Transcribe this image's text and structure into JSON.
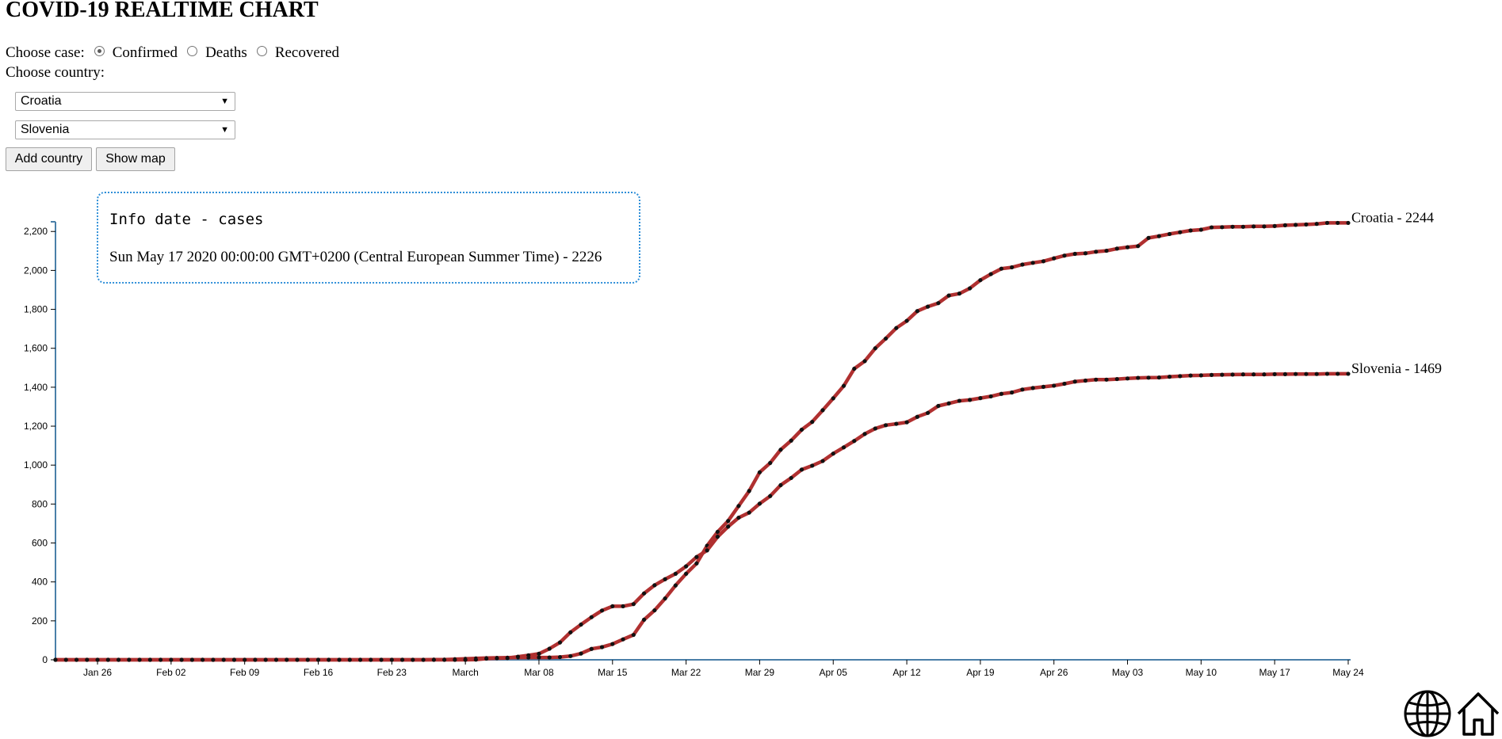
{
  "header": {
    "title": "COVID-19 REALTIME CHART"
  },
  "controls": {
    "case_label": "Choose case:",
    "cases": [
      {
        "label": "Confirmed",
        "checked": true
      },
      {
        "label": "Deaths",
        "checked": false
      },
      {
        "label": "Recovered",
        "checked": false
      }
    ],
    "country_label": "Choose country:",
    "selects": [
      "Croatia",
      "Slovenia"
    ],
    "add_country_label": "Add country",
    "show_map_label": "Show map"
  },
  "tooltip": {
    "title": "Info date - cases",
    "text": "Sun May 17 2020 00:00:00 GMT+0200 (Central European Summer Time) - 2226"
  },
  "icons": {
    "globe": "globe-icon",
    "home": "home-icon"
  },
  "chart_data": {
    "type": "line",
    "x_start": "2020-01-22",
    "x_tick_labels": [
      "Jan 26",
      "Feb 02",
      "Feb 09",
      "Feb 16",
      "Feb 23",
      "March",
      "Mar 08",
      "Mar 15",
      "Mar 22",
      "Mar 29",
      "Apr 05",
      "Apr 12",
      "Apr 19",
      "Apr 26",
      "May 03",
      "May 10",
      "May 17",
      "May 24"
    ],
    "x_tick_days": [
      4,
      11,
      18,
      25,
      32,
      39,
      46,
      53,
      60,
      67,
      74,
      81,
      88,
      95,
      102,
      109,
      116,
      123
    ],
    "y_ticks": [
      0,
      200,
      400,
      600,
      800,
      1000,
      1200,
      1400,
      1600,
      1800,
      2000,
      2200
    ],
    "y_tick_labels": [
      "0",
      "200",
      "400",
      "600",
      "800",
      "1,000",
      "1,200",
      "1,400",
      "1,600",
      "1,800",
      "2,000",
      "2,200"
    ],
    "ylim": [
      0,
      2250
    ],
    "line_color": "#b03030",
    "marker_color": "#111111",
    "series": [
      {
        "name": "Croatia",
        "end_label": "Croatia - 2244",
        "values": [
          0,
          0,
          0,
          0,
          0,
          0,
          0,
          0,
          0,
          0,
          0,
          0,
          0,
          0,
          0,
          0,
          0,
          0,
          0,
          0,
          0,
          0,
          0,
          0,
          0,
          0,
          0,
          0,
          0,
          0,
          0,
          0,
          0,
          0,
          0,
          0,
          1,
          1,
          3,
          5,
          7,
          9,
          10,
          11,
          12,
          12,
          12,
          12,
          14,
          19,
          32,
          56,
          65,
          81,
          105,
          128,
          206,
          254,
          315,
          382,
          442,
          495,
          586,
          657,
          713,
          790,
          867,
          963,
          1011,
          1079,
          1126,
          1182,
          1222,
          1282,
          1343,
          1407,
          1495,
          1534,
          1600,
          1650,
          1704,
          1741,
          1791,
          1814,
          1832,
          1871,
          1881,
          1908,
          1950,
          1981,
          2009,
          2016,
          2030,
          2039,
          2047,
          2062,
          2076,
          2085,
          2088,
          2096,
          2101,
          2112,
          2119,
          2125,
          2167,
          2176,
          2187,
          2196,
          2205,
          2209,
          2221,
          2222,
          2224,
          2224,
          2226,
          2226,
          2228,
          2232,
          2234,
          2236,
          2239,
          2244,
          2244,
          2244
        ]
      },
      {
        "name": "Slovenia",
        "end_label": "Slovenia - 1469",
        "values": [
          0,
          0,
          0,
          0,
          0,
          0,
          0,
          0,
          0,
          0,
          0,
          0,
          0,
          0,
          0,
          0,
          0,
          0,
          0,
          0,
          0,
          0,
          0,
          0,
          0,
          0,
          0,
          0,
          0,
          0,
          0,
          0,
          0,
          0,
          0,
          0,
          0,
          0,
          0,
          0,
          1,
          6,
          8,
          9,
          16,
          23,
          31,
          57,
          89,
          141,
          181,
          219,
          253,
          275,
          275,
          286,
          341,
          383,
          414,
          442,
          480,
          528,
          562,
          632,
          684,
          730,
          756,
          802,
          841,
          897,
          934,
          977,
          997,
          1021,
          1059,
          1091,
          1124,
          1160,
          1188,
          1205,
          1212,
          1220,
          1248,
          1268,
          1304,
          1317,
          1330,
          1335,
          1344,
          1353,
          1366,
          1373,
          1388,
          1396,
          1402,
          1408,
          1418,
          1429,
          1434,
          1439,
          1439,
          1442,
          1445,
          1448,
          1449,
          1450,
          1454,
          1457,
          1460,
          1461,
          1463,
          1464,
          1465,
          1466,
          1466,
          1466,
          1467,
          1467,
          1468,
          1468,
          1468,
          1469,
          1469,
          1469
        ]
      }
    ]
  }
}
